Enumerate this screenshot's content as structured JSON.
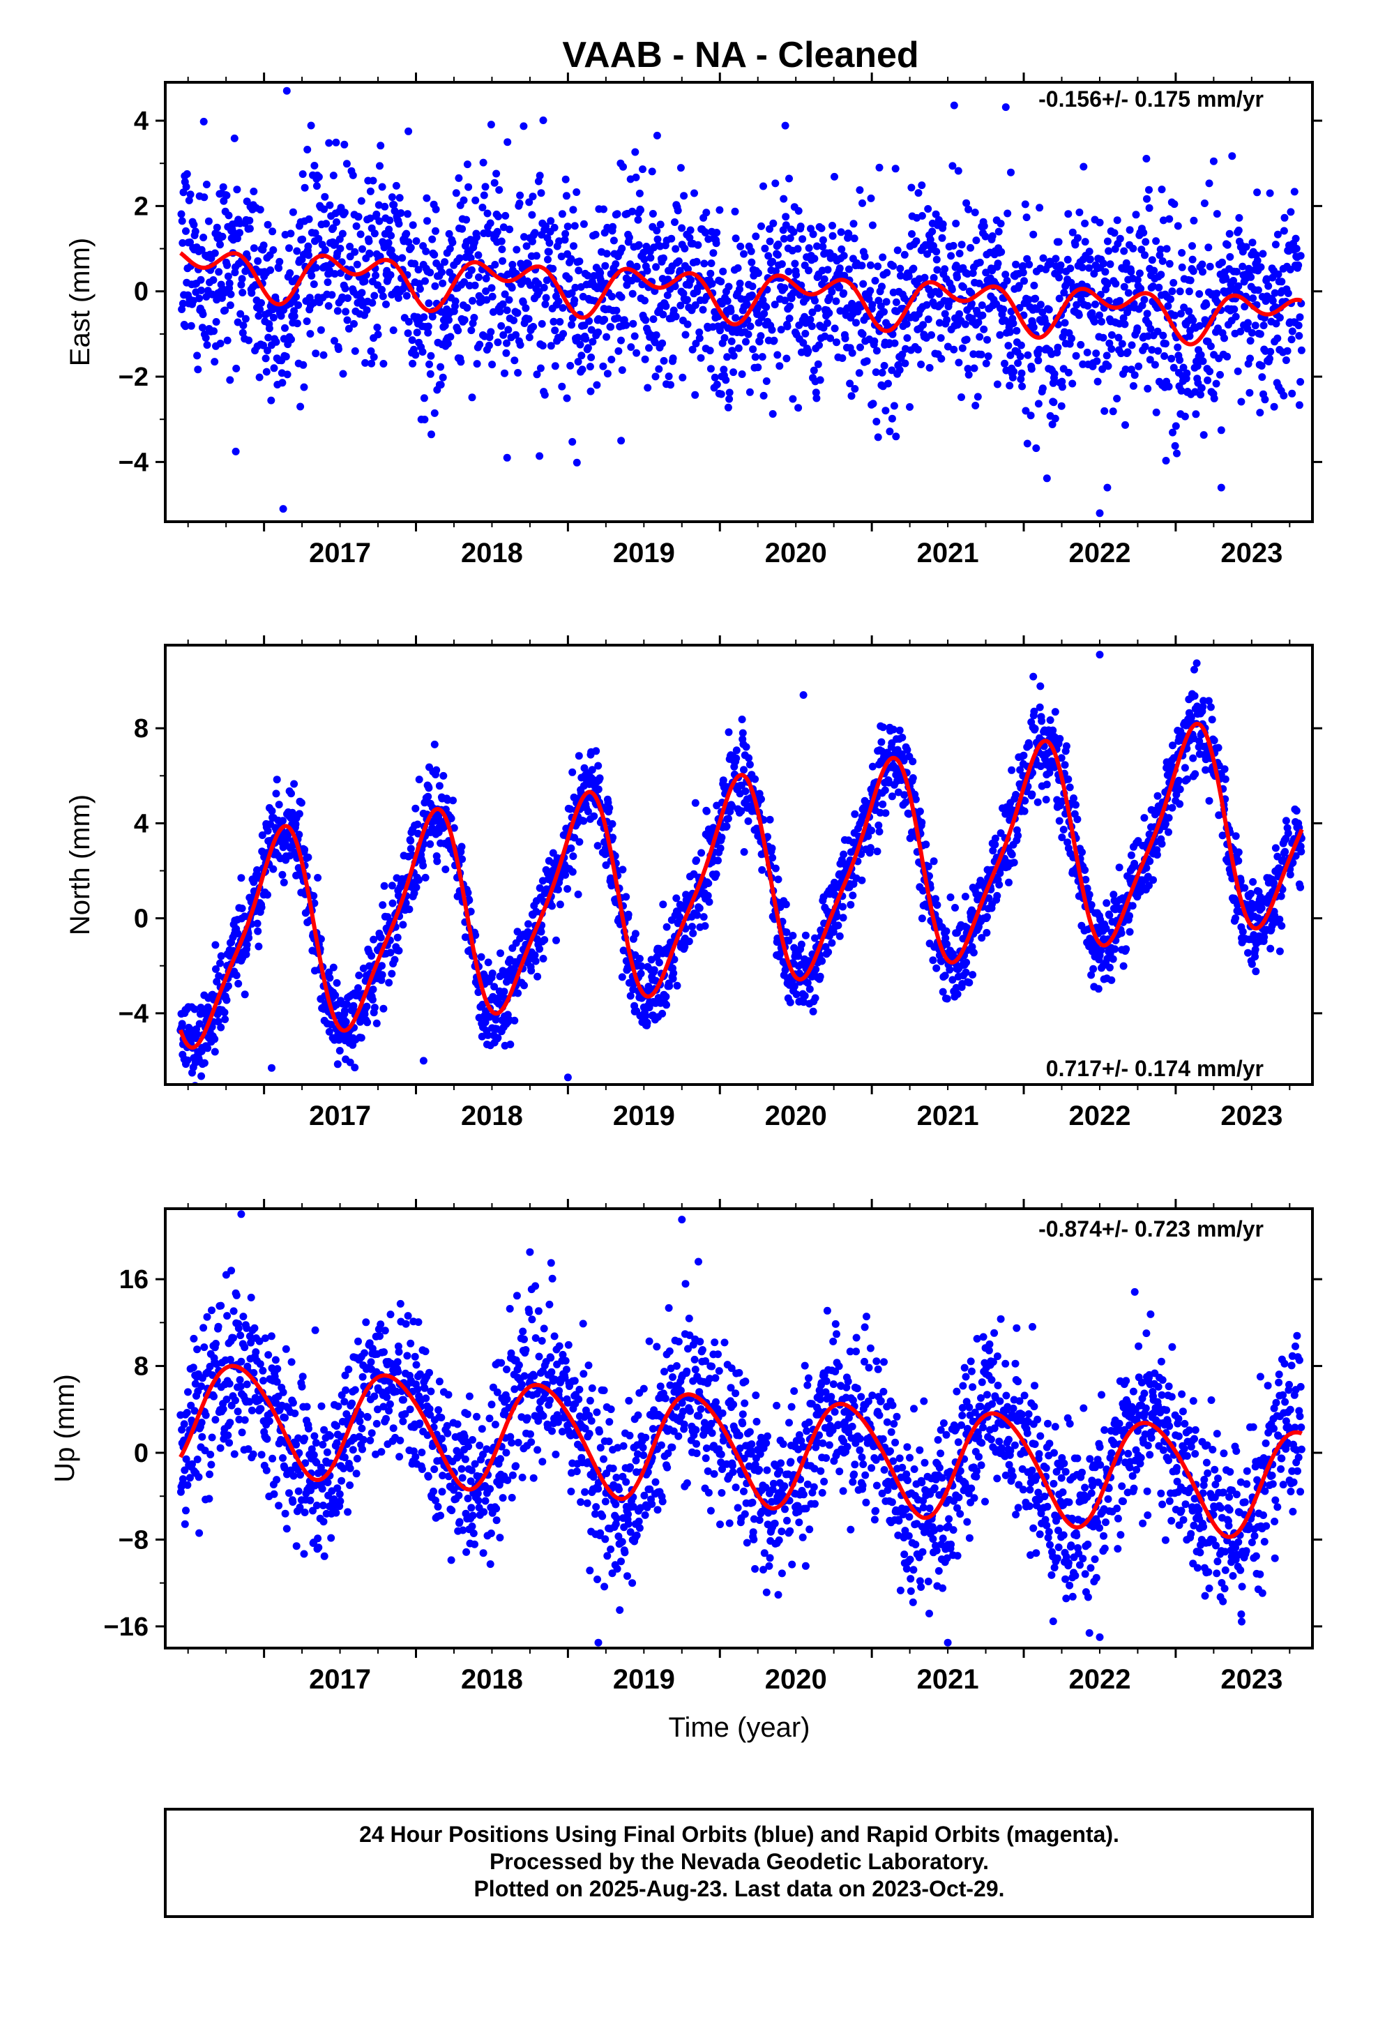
{
  "title": "VAAB  - NA - Cleaned",
  "xlabel": "Time (year)",
  "footer": {
    "line1": "24 Hour Positions Using Final Orbits (blue) and Rapid Orbits (magenta).",
    "line2": "Processed by the Nevada Geodetic Laboratory.",
    "line3": "Plotted on 2025-Aug-23. Last data on 2023-Oct-29."
  },
  "colors": {
    "data_points": "#0000ff",
    "fit_line": "#ff0000",
    "frame": "#000000"
  },
  "chart_data": [
    {
      "type": "scatter",
      "component": "east",
      "ylabel": "East (mm)",
      "rate": "-0.156+/- 0.175 mm/yr",
      "rate_position": "top-right",
      "xlim": [
        2016.35,
        2023.9
      ],
      "ylim": [
        -5.4,
        4.9
      ],
      "y_ticks": [
        4,
        2,
        0,
        -2,
        -4
      ],
      "y_tick_labels": [
        "4",
        "2",
        "0",
        "−2",
        "−4"
      ],
      "x_ticks": [
        2017,
        2018,
        2019,
        2020,
        2021,
        2022,
        2023
      ],
      "x_start": 2016.45,
      "x_end": 2023.83,
      "fit": {
        "offset": 0.55,
        "trend": -0.156,
        "annual_sin": 0.3,
        "annual_cos": 0.25,
        "semi_sin": -0.35,
        "semi_cos": 0.1,
        "t0": 2016.45
      },
      "scatter_std": 1.15,
      "outliers": [
        [
          2017.15,
          4.7
        ],
        [
          2017.95,
          3.75
        ],
        [
          2022.5,
          -5.2
        ],
        [
          2022.55,
          -4.6
        ],
        [
          2023.3,
          -4.6
        ],
        [
          2018.6,
          -3.9
        ],
        [
          2019.35,
          -3.5
        ],
        [
          2023.25,
          3.05
        ],
        [
          2021.05,
          2.9
        ]
      ]
    },
    {
      "type": "scatter",
      "component": "north",
      "ylabel": "North (mm)",
      "rate": "0.717+/- 0.174 mm/yr",
      "rate_position": "bottom-right",
      "xlim": [
        2016.35,
        2023.9
      ],
      "ylim": [
        -7.0,
        11.5
      ],
      "y_ticks": [
        8,
        4,
        0,
        -4
      ],
      "y_tick_labels": [
        "8",
        "4",
        "0",
        "−4"
      ],
      "x_ticks": [
        2017,
        2018,
        2019,
        2020,
        2021,
        2022,
        2023
      ],
      "x_start": 2016.45,
      "x_end": 2023.83,
      "fit": {
        "offset": -1.2,
        "trend": 0.717,
        "annual_sin": -3.2,
        "annual_cos": -2.6,
        "semi_sin": 0.0,
        "semi_cos": -0.9,
        "t0": 2016.45
      },
      "scatter_std": 0.95,
      "outliers": [
        [
          2022.5,
          11.1
        ],
        [
          2020.55,
          9.4
        ],
        [
          2019.0,
          -6.7
        ],
        [
          2017.05,
          -6.3
        ],
        [
          2018.05,
          -6.0
        ],
        [
          2016.85,
          1.7
        ]
      ]
    },
    {
      "type": "scatter",
      "component": "up",
      "ylabel": "Up (mm)",
      "rate": "-0.874+/- 0.723 mm/yr",
      "rate_position": "top-right",
      "xlim": [
        2016.35,
        2023.9
      ],
      "ylim": [
        -18.0,
        22.5
      ],
      "y_ticks": [
        16,
        8,
        0,
        -8,
        -16
      ],
      "y_tick_labels": [
        "16",
        "8",
        "0",
        "−8",
        "−16"
      ],
      "x_ticks": [
        2017,
        2018,
        2019,
        2020,
        2021,
        2022,
        2023
      ],
      "x_start": 2016.45,
      "x_end": 2023.83,
      "fit": {
        "offset": 3.6,
        "trend": -0.874,
        "annual_sin": 3.4,
        "annual_cos": -3.6,
        "semi_sin": 0.3,
        "semi_cos": -0.4,
        "t0": 2016.45
      },
      "scatter_std": 3.9,
      "outliers": [
        [
          2016.85,
          22.0
        ],
        [
          2019.75,
          21.5
        ],
        [
          2018.75,
          18.5
        ],
        [
          2017.15,
          -7.0
        ],
        [
          2019.2,
          -17.5
        ],
        [
          2021.5,
          -17.5
        ],
        [
          2022.5,
          -17.0
        ]
      ]
    }
  ]
}
